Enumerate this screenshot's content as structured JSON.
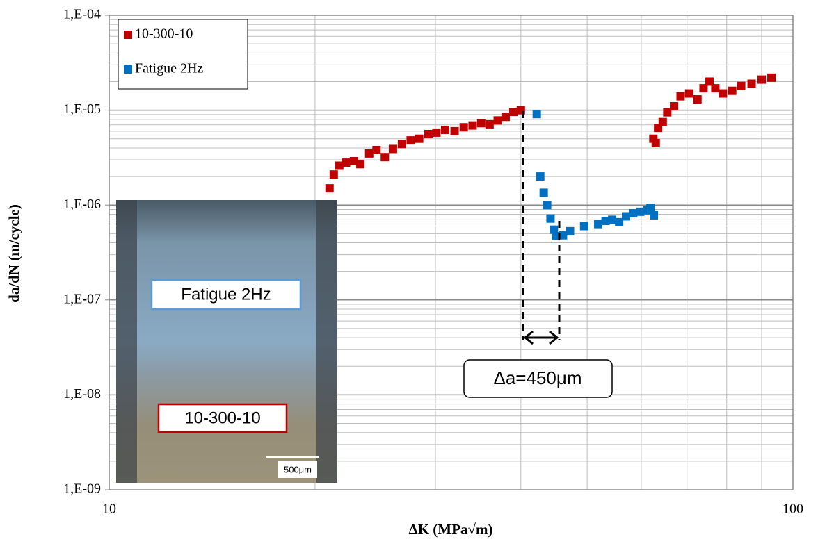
{
  "chart_data": {
    "type": "scatter",
    "x_label": "ΔK (MPa√m)",
    "y_label": "da/dN (m/cycle)",
    "xlog": true,
    "ylog": true,
    "grid": true,
    "minor_grid": true,
    "legend": "upper left",
    "xlim": [
      10,
      100
    ],
    "xticks": [
      10,
      100
    ],
    "ylim": [
      1e-09,
      0.0001
    ],
    "yticks": [
      {
        "value": 1e-09,
        "label": "1,E-09"
      },
      {
        "value": 1e-08,
        "label": "1,E-08"
      },
      {
        "value": 1e-07,
        "label": "1,E-07"
      },
      {
        "value": 1e-06,
        "label": "1,E-06"
      },
      {
        "value": 1e-05,
        "label": "1,E-05"
      },
      {
        "value": 0.0001,
        "label": "1,E-04"
      }
    ],
    "series": [
      {
        "name": "10-300-10",
        "color": "#c00000",
        "x": [
          21.0,
          21.3,
          21.7,
          22.2,
          22.8,
          23.3,
          24.0,
          24.6,
          25.3,
          26.0,
          26.8,
          27.6,
          28.4,
          29.3,
          30.1,
          31.0,
          32.0,
          33.0,
          34.0,
          35.0,
          36.0,
          37.0,
          38.0,
          39.0,
          40.0,
          62.5,
          63.0,
          63.5,
          64.5,
          65.5,
          67.0,
          68.5,
          70.5,
          72.5,
          74.0,
          75.5,
          77.0,
          79.0,
          81.5,
          84.0,
          87.0,
          90.0,
          93.0
        ],
        "values": [
          1.5e-06,
          2.1e-06,
          2.6e-06,
          2.8e-06,
          2.9e-06,
          2.7e-06,
          3.5e-06,
          3.8e-06,
          3.2e-06,
          3.9e-06,
          4.4e-06,
          4.8e-06,
          5e-06,
          5.6e-06,
          5.8e-06,
          6.2e-06,
          6e-06,
          6.6e-06,
          6.9e-06,
          7.3e-06,
          7.1e-06,
          7.8e-06,
          8.5e-06,
          9.6e-06,
          1e-05,
          5e-06,
          4.5e-06,
          6.5e-06,
          7.5e-06,
          9.5e-06,
          1.1e-05,
          1.4e-05,
          1.5e-05,
          1.3e-05,
          1.7e-05,
          2e-05,
          1.7e-05,
          1.5e-05,
          1.6e-05,
          1.8e-05,
          1.9e-05,
          2.1e-05,
          2.2e-05
        ]
      },
      {
        "name": "Fatigue 2Hz",
        "color": "#0070c0",
        "x": [
          42.2,
          42.7,
          43.2,
          43.7,
          44.2,
          44.7,
          45.0,
          46.1,
          47.2,
          49.5,
          51.9,
          53.2,
          54.4,
          55.7,
          57.0,
          58.4,
          59.8,
          61.2,
          61.9,
          62.6
        ],
        "values": [
          9.1e-06,
          2e-06,
          1.35e-06,
          1e-06,
          7.2e-07,
          5.5e-07,
          4.7e-07,
          4.8e-07,
          5.3e-07,
          6e-07,
          6.3e-07,
          6.8e-07,
          7e-07,
          6.6e-07,
          7.6e-07,
          8.2e-07,
          8.5e-07,
          8.8e-07,
          9.3e-07,
          7.8e-07
        ]
      }
    ],
    "annotations": [
      "Δa=450μm",
      "Fatigue 2Hz",
      "10-300-10",
      "500μm"
    ]
  }
}
